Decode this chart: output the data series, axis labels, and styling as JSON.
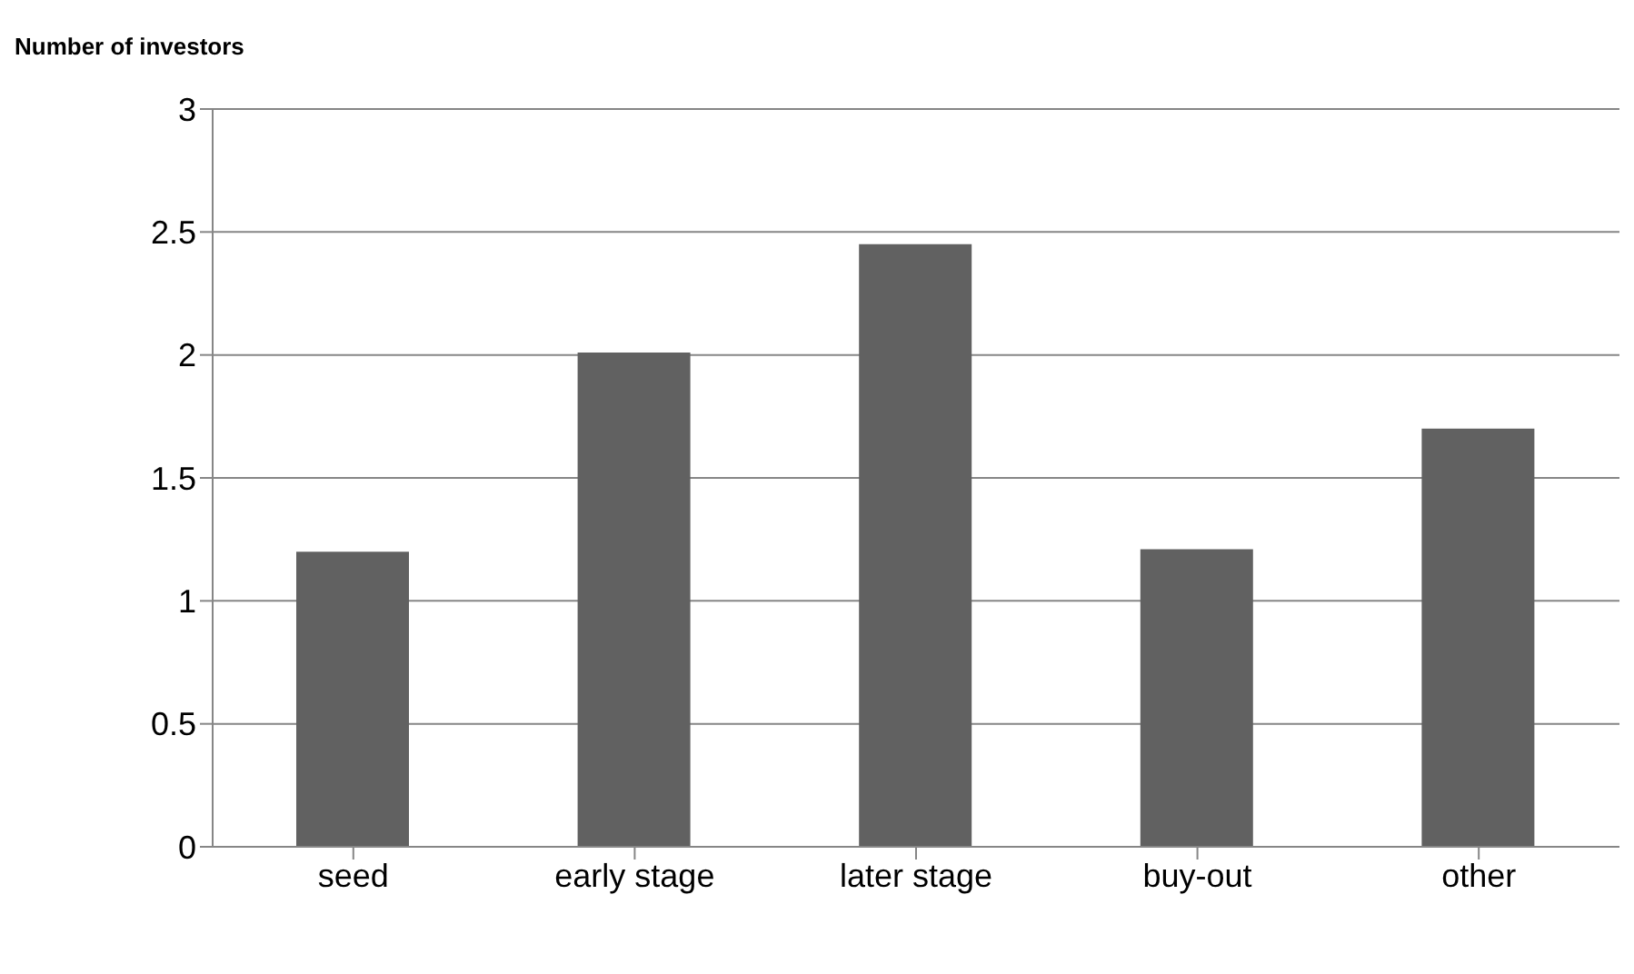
{
  "chart_data": {
    "type": "bar",
    "ylabel": "Number of investors",
    "categories": [
      "seed",
      "early stage",
      "later stage",
      "buy-out",
      "other"
    ],
    "values": [
      1.2,
      2.01,
      2.45,
      1.21,
      1.7
    ],
    "color": "#616161",
    "ylim": [
      0,
      3
    ],
    "yticks": [
      0,
      0.5,
      1,
      1.5,
      2,
      2.5,
      3
    ],
    "grid": "y"
  }
}
